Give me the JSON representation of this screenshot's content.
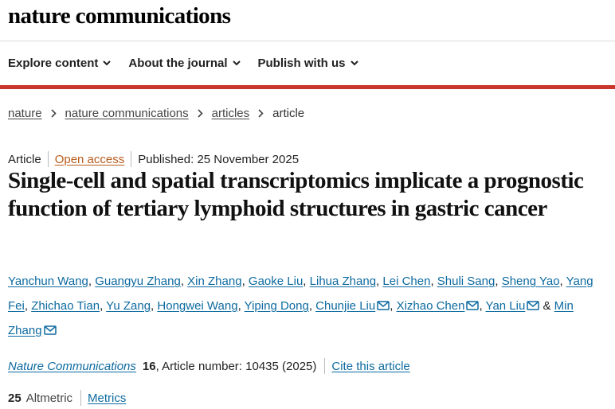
{
  "header": {
    "logo": "nature communications"
  },
  "nav": [
    "Explore content",
    "About the journal",
    "Publish with us"
  ],
  "breadcrumb": [
    "nature",
    "nature communications",
    "articles",
    "article"
  ],
  "article": {
    "type": "Article",
    "access": "Open access",
    "published": "Published: 25 November 2025",
    "title": "Single-cell and spatial transcriptomics implicate a prognostic function of tertiary lymphoid structures in gastric cancer",
    "separator": ",",
    "conjunction": "&",
    "authors": [
      {
        "name": "Yanchun Wang",
        "mail": false
      },
      {
        "name": "Guangyu Zhang",
        "mail": false
      },
      {
        "name": "Xin Zhang",
        "mail": false
      },
      {
        "name": "Gaoke Liu",
        "mail": false
      },
      {
        "name": "Lihua Zhang",
        "mail": false
      },
      {
        "name": "Lei Chen",
        "mail": false
      },
      {
        "name": "Shuli Sang",
        "mail": false
      },
      {
        "name": "Sheng Yao",
        "mail": false
      },
      {
        "name": "Yang Fei",
        "mail": false
      },
      {
        "name": "Zhichao Tian",
        "mail": false
      },
      {
        "name": "Yu Zang",
        "mail": false
      },
      {
        "name": "Hongwei Wang",
        "mail": false
      },
      {
        "name": "Yiping Dong",
        "mail": false
      },
      {
        "name": "Chunjie Liu",
        "mail": true
      },
      {
        "name": "Xizhao Chen",
        "mail": true
      },
      {
        "name": "Yan Liu",
        "mail": true
      },
      {
        "name": "Min Zhang",
        "mail": true
      }
    ],
    "citation": {
      "journal": "Nature Communications",
      "volume": "16",
      "details": ", Article number: 10435 (2025)",
      "cite": "Cite this article"
    },
    "metrics": {
      "altmetric": 25,
      "altmetric_label": "Altmetric",
      "link": "Metrics"
    }
  }
}
